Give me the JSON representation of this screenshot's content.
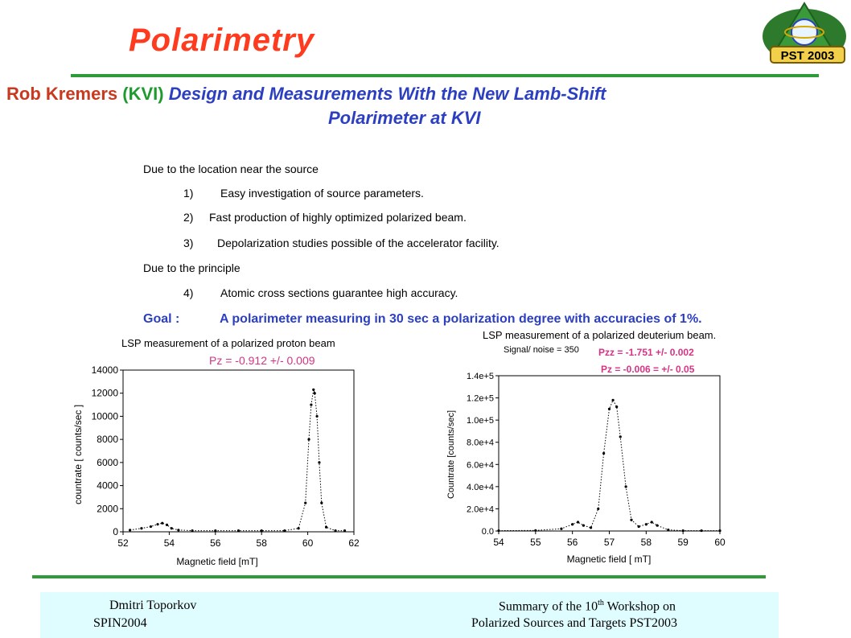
{
  "slide": {
    "title": "Polarimetry",
    "author": "Rob Kremers",
    "institute": "(KVI)",
    "talk_line1": "Design and Measurements With the New Lamb-Shift",
    "talk_line2": "Polarimeter at KVI",
    "logo_text": "PST 2003",
    "lines": [
      "Due to the location near the source",
      "Easy investigation of source parameters.",
      "Fast production of highly optimized polarized beam.",
      "Depolarization studies possible of the accelerator facility.",
      "Due to the principle",
      "Atomic cross sections guarantee high accuracy."
    ],
    "numbers": [
      "1)",
      "2)",
      "3)",
      "4)"
    ],
    "goal_label": "Goal :",
    "goal_text": "A polarimeter measuring in 30 sec a polarization degree with accuracies of 1%.",
    "colors": {
      "title": "#ff3b1f",
      "accent_blue": "#2b3fc0",
      "green_rule": "#2e9a3a",
      "pink": "#d63384",
      "footer_bg": "#dffcff"
    }
  },
  "footer": {
    "left_name": "Dmitri Toporkov",
    "left_conf": "SPIN2004",
    "right_line1_pre": "Summary of the 10",
    "right_line1_sup": "th",
    "right_line1_post": " Workshop on",
    "right_line2": "Polarized Sources and Targets PST2003"
  },
  "chart_data": [
    {
      "type": "scatter",
      "title": "LSP measurement of a polarized proton beam",
      "annotation": "Pz = -0.912 +/- 0.009",
      "xlabel": "Magnetic field [mT]",
      "ylabel": "countrate  [ counts/sec ]",
      "xlim": [
        52,
        62
      ],
      "ylim": [
        0,
        14000
      ],
      "xticks": [
        "52",
        "54",
        "56",
        "58",
        "60",
        "62"
      ],
      "yticks": [
        "0",
        "2000",
        "4000",
        "6000",
        "8000",
        "10000",
        "12000",
        "14000"
      ],
      "grid": false,
      "x": [
        52.3,
        52.8,
        53.2,
        53.5,
        53.7,
        53.9,
        54.1,
        54.4,
        55.0,
        56.0,
        57.0,
        58.0,
        59.0,
        59.6,
        59.9,
        60.05,
        60.15,
        60.25,
        60.3,
        60.4,
        60.5,
        60.6,
        60.8,
        61.2,
        61.6
      ],
      "y": [
        150,
        300,
        450,
        650,
        750,
        600,
        300,
        150,
        100,
        100,
        100,
        100,
        100,
        300,
        2500,
        8000,
        11000,
        12300,
        12000,
        10000,
        6000,
        2500,
        400,
        100,
        100
      ]
    },
    {
      "type": "scatter",
      "title": "LSP measurement of a polarized deuterium beam.",
      "subtitle": "Signal/ noise = 350",
      "annotations": [
        "Pzz = -1.751 +/- 0.002",
        "Pz = -0.006 = +/- 0.05"
      ],
      "xlabel": "Magnetic field [ mT]",
      "ylabel": "Countrate [counts/sec]",
      "xlim": [
        54,
        60
      ],
      "ylim": [
        0,
        140000
      ],
      "xticks": [
        "54",
        "55",
        "56",
        "57",
        "58",
        "59",
        "60"
      ],
      "yticks": [
        "0.0",
        "2.0e+4",
        "4.0e+4",
        "6.0e+4",
        "8.0e+4",
        "1.0e+5",
        "1.2e+5",
        "1.4e+5"
      ],
      "grid": false,
      "x": [
        54.0,
        55.0,
        55.7,
        56.0,
        56.15,
        56.3,
        56.5,
        56.7,
        56.85,
        57.0,
        57.1,
        57.2,
        57.3,
        57.45,
        57.6,
        57.8,
        58.0,
        58.15,
        58.3,
        58.6,
        59.0,
        59.5,
        60.0
      ],
      "y": [
        300,
        500,
        2000,
        6000,
        8000,
        5000,
        3000,
        20000,
        70000,
        110000,
        118000,
        112000,
        85000,
        40000,
        10000,
        4000,
        6000,
        8000,
        5000,
        1000,
        300,
        300,
        300
      ]
    }
  ]
}
